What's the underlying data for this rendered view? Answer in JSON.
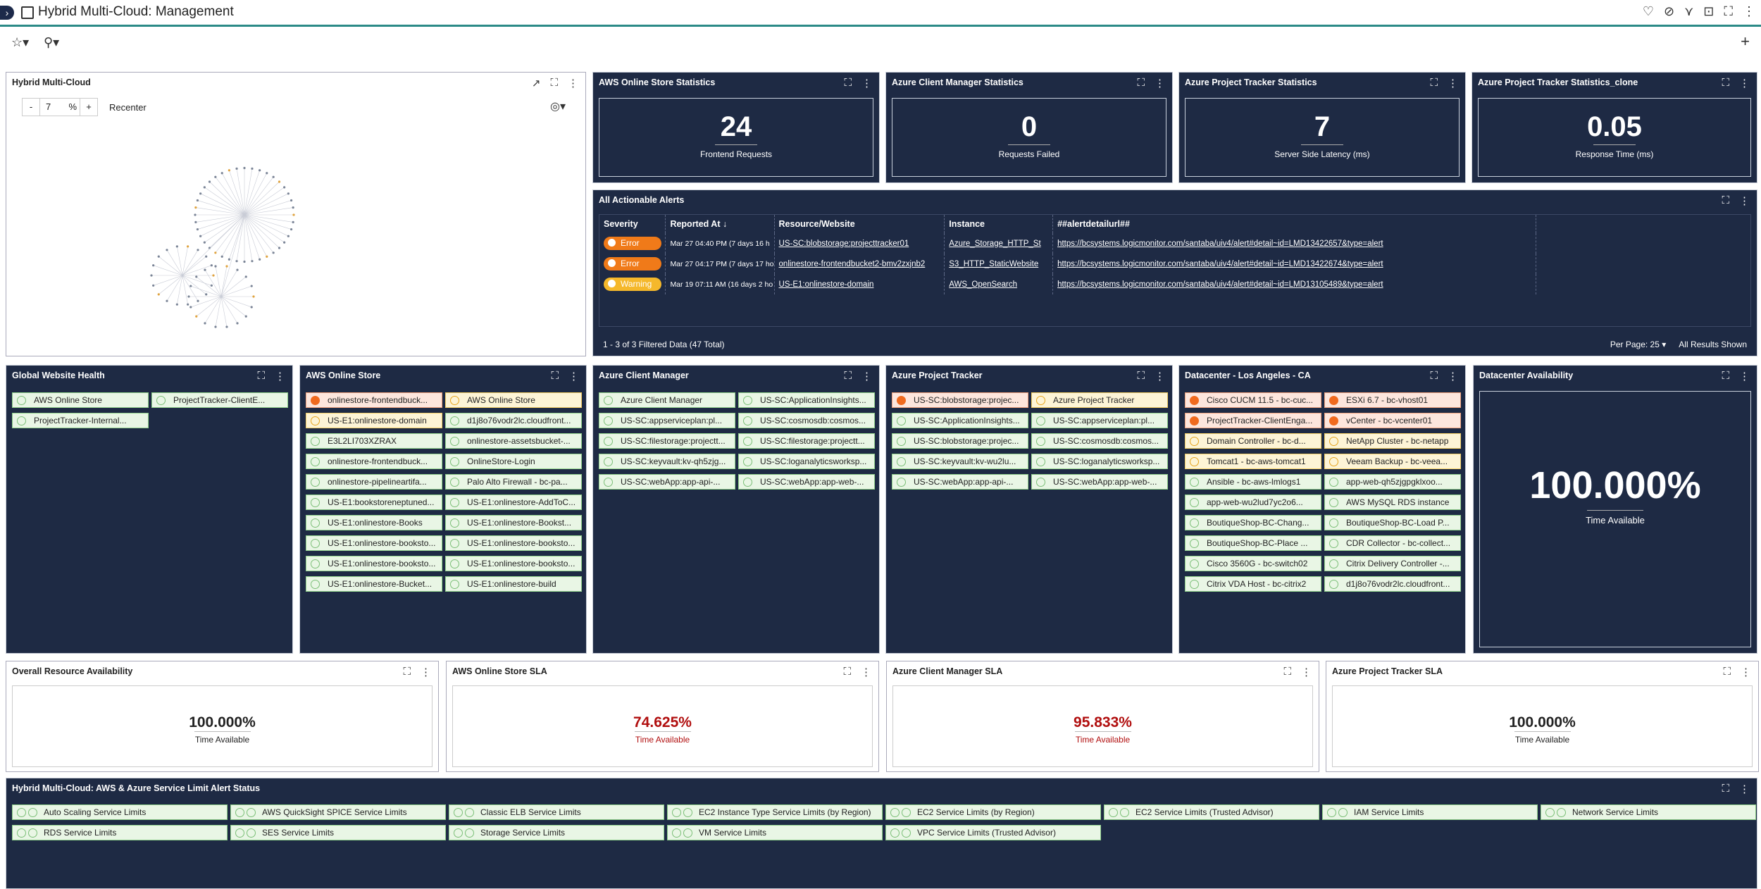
{
  "header": {
    "title": "Hybrid Multi-Cloud: Management"
  },
  "topo": {
    "title": "Hybrid Multi-Cloud",
    "zoom_minus": "-",
    "zoom_value": "7",
    "zoom_unit": "%",
    "zoom_plus": "+",
    "recenter": "Recenter"
  },
  "stats": [
    {
      "title": "AWS Online Store Statistics",
      "value": "24",
      "label": "Frontend Requests"
    },
    {
      "title": "Azure Client Manager Statistics",
      "value": "0",
      "label": "Requests Failed"
    },
    {
      "title": "Azure Project Tracker Statistics",
      "value": "7",
      "label": "Server Side Latency (ms)"
    },
    {
      "title": "Azure Project Tracker Statistics_clone",
      "value": "0.05",
      "label": "Response Time (ms)"
    }
  ],
  "alerts": {
    "title": "All Actionable Alerts",
    "columns": [
      "Severity",
      "Reported At ↓",
      "Resource/Website",
      "Instance",
      "##alertdetailurl##"
    ],
    "rows": [
      {
        "sev": "Error",
        "at": "Mar 27 04:40 PM  (7 days 16 h",
        "res": "US-SC:blobstorage:projecttracker01",
        "inst": "Azure_Storage_HTTP_St",
        "url": "https://bcsystems.logicmonitor.com/santaba/uiv4/alert#detail~id=LMD13422657&type=alert"
      },
      {
        "sev": "Error",
        "at": "Mar 27 04:17 PM  (7 days 17 ho",
        "res": "onlinestore-frontendbucket2-bmv2zxjnb2",
        "inst": "S3_HTTP_StaticWebsite",
        "url": "https://bcsystems.logicmonitor.com/santaba/uiv4/alert#detail~id=LMD13422674&type=alert"
      },
      {
        "sev": "Warning",
        "at": "Mar 19 07:11 AM  (16 days 2 ho",
        "res": "US-E1:onlinestore-domain",
        "inst": "AWS_OpenSearch",
        "url": "https://bcsystems.logicmonitor.com/santaba/uiv4/alert#detail~id=LMD13105489&type=alert"
      }
    ],
    "footer": "1 - 3 of 3 Filtered Data (47 Total)",
    "per_page": "Per Page: 25",
    "all_results": "All Results Shown"
  },
  "health": [
    {
      "title": "Global Website Health",
      "tiles": [
        {
          "t": "AWS Online Store",
          "s": "ok"
        },
        {
          "t": "ProjectTracker-ClientE...",
          "s": "ok"
        },
        {
          "t": "ProjectTracker-Internal...",
          "s": "ok"
        }
      ]
    },
    {
      "title": "AWS Online Store",
      "tiles": [
        {
          "t": "onlinestore-frontendbuck...",
          "s": "err"
        },
        {
          "t": "AWS Online Store",
          "s": "warn"
        },
        {
          "t": "US-E1:onlinestore-domain",
          "s": "warn"
        },
        {
          "t": "d1j8o76vodr2lc.cloudfront...",
          "s": "ok"
        },
        {
          "t": "E3L2LI703XZRAX",
          "s": "ok"
        },
        {
          "t": "onlinestore-assetsbucket-...",
          "s": "ok"
        },
        {
          "t": "onlinestore-frontendbuck...",
          "s": "ok"
        },
        {
          "t": "OnlineStore-Login",
          "s": "ok"
        },
        {
          "t": "onlinestore-pipelineartifa...",
          "s": "ok"
        },
        {
          "t": "Palo Alto Firewall - bc-pa...",
          "s": "ok"
        },
        {
          "t": "US-E1:bookstoreneptuned...",
          "s": "ok"
        },
        {
          "t": "US-E1:onlinestore-AddToC...",
          "s": "ok"
        },
        {
          "t": "US-E1:onlinestore-Books",
          "s": "ok"
        },
        {
          "t": "US-E1:onlinestore-Bookst...",
          "s": "ok"
        },
        {
          "t": "US-E1:onlinestore-booksto...",
          "s": "ok"
        },
        {
          "t": "US-E1:onlinestore-booksto...",
          "s": "ok"
        },
        {
          "t": "US-E1:onlinestore-booksto...",
          "s": "ok"
        },
        {
          "t": "US-E1:onlinestore-booksto...",
          "s": "ok"
        },
        {
          "t": "US-E1:onlinestore-Bucket...",
          "s": "ok"
        },
        {
          "t": "US-E1:onlinestore-build",
          "s": "ok"
        }
      ]
    },
    {
      "title": "Azure Client Manager",
      "tiles": [
        {
          "t": "Azure Client Manager",
          "s": "ok"
        },
        {
          "t": "US-SC:ApplicationInsights...",
          "s": "ok"
        },
        {
          "t": "US-SC:appserviceplan:pl...",
          "s": "ok"
        },
        {
          "t": "US-SC:cosmosdb:cosmos...",
          "s": "ok"
        },
        {
          "t": "US-SC:filestorage:projectt...",
          "s": "ok"
        },
        {
          "t": "US-SC:filestorage:projectt...",
          "s": "ok"
        },
        {
          "t": "US-SC:keyvault:kv-qh5zjg...",
          "s": "ok"
        },
        {
          "t": "US-SC:loganalyticsworksp...",
          "s": "ok"
        },
        {
          "t": "US-SC:webApp:app-api-...",
          "s": "ok"
        },
        {
          "t": "US-SC:webApp:app-web-...",
          "s": "ok"
        }
      ]
    },
    {
      "title": "Azure Project Tracker",
      "tiles": [
        {
          "t": "US-SC:blobstorage:projec...",
          "s": "err"
        },
        {
          "t": "Azure Project Tracker",
          "s": "warn"
        },
        {
          "t": "US-SC:ApplicationInsights...",
          "s": "ok"
        },
        {
          "t": "US-SC:appserviceplan:pl...",
          "s": "ok"
        },
        {
          "t": "US-SC:blobstorage:projec...",
          "s": "ok"
        },
        {
          "t": "US-SC:cosmosdb:cosmos...",
          "s": "ok"
        },
        {
          "t": "US-SC:keyvault:kv-wu2lu...",
          "s": "ok"
        },
        {
          "t": "US-SC:loganalyticsworksp...",
          "s": "ok"
        },
        {
          "t": "US-SC:webApp:app-api-...",
          "s": "ok"
        },
        {
          "t": "US-SC:webApp:app-web-...",
          "s": "ok"
        }
      ]
    },
    {
      "title": "Datacenter - Los Angeles - CA",
      "tiles": [
        {
          "t": "Cisco CUCM 11.5 - bc-cuc...",
          "s": "err"
        },
        {
          "t": "ESXi 6.7 - bc-vhost01",
          "s": "err"
        },
        {
          "t": "ProjectTracker-ClientEnga...",
          "s": "err"
        },
        {
          "t": "vCenter - bc-vcenter01",
          "s": "err"
        },
        {
          "t": "Domain Controller - bc-d...",
          "s": "warn"
        },
        {
          "t": "NetApp Cluster - bc-netapp",
          "s": "warn"
        },
        {
          "t": "Tomcat1 - bc-aws-tomcat1",
          "s": "warn"
        },
        {
          "t": "Veeam Backup - bc-veea...",
          "s": "warn"
        },
        {
          "t": "Ansible - bc-aws-lmlogs1",
          "s": "ok"
        },
        {
          "t": "app-web-qh5zjgpgklxoo...",
          "s": "ok"
        },
        {
          "t": "app-web-wu2lud7yc2o6...",
          "s": "ok"
        },
        {
          "t": "AWS MySQL RDS instance",
          "s": "ok"
        },
        {
          "t": "BoutiqueShop-BC-Chang...",
          "s": "ok"
        },
        {
          "t": "BoutiqueShop-BC-Load P...",
          "s": "ok"
        },
        {
          "t": "BoutiqueShop-BC-Place ...",
          "s": "ok"
        },
        {
          "t": "CDR Collector - bc-collect...",
          "s": "ok"
        },
        {
          "t": "Cisco 3560G - bc-switch02",
          "s": "ok"
        },
        {
          "t": "Citrix Delivery Controller -...",
          "s": "ok"
        },
        {
          "t": "Citrix VDA Host - bc-citrix2",
          "s": "ok"
        },
        {
          "t": "d1j8o76vodr2lc.cloudfront...",
          "s": "ok"
        }
      ]
    }
  ],
  "availability": {
    "title": "Datacenter Availability",
    "value": "100.000%",
    "label": "Time Available"
  },
  "sla": [
    {
      "title": "Overall Resource Availability",
      "value": "100.000%",
      "label": "Time Available",
      "red": false
    },
    {
      "title": "AWS Online Store SLA",
      "value": "74.625%",
      "label": "Time Available",
      "red": true
    },
    {
      "title": "Azure Client Manager SLA",
      "value": "95.833%",
      "label": "Time Available",
      "red": true
    },
    {
      "title": "Azure Project Tracker SLA",
      "value": "100.000%",
      "label": "Time Available",
      "red": false
    }
  ],
  "limits": {
    "title": "Hybrid Multi-Cloud: AWS & Azure Service Limit Alert Status",
    "tiles": [
      "Auto Scaling Service Limits",
      "AWS QuickSight SPICE Service Limits",
      "Classic ELB Service Limits",
      "EC2 Instance Type Service Limits (by Region)",
      "EC2 Service Limits (by Region)",
      "EC2 Service Limits (Trusted Advisor)",
      "IAM Service Limits",
      "Network Service Limits",
      "RDS Service Limits",
      "SES Service Limits",
      "Storage Service Limits",
      "VM Service Limits",
      "VPC Service Limits (Trusted Advisor)"
    ]
  },
  "colors": {
    "bg_dark": "#1e2a44",
    "error": "#f07a19",
    "warning": "#f5b82b",
    "ok_green": "#8fd08a",
    "sla_red": "#b10f0f",
    "accent": "#2b8a87"
  }
}
